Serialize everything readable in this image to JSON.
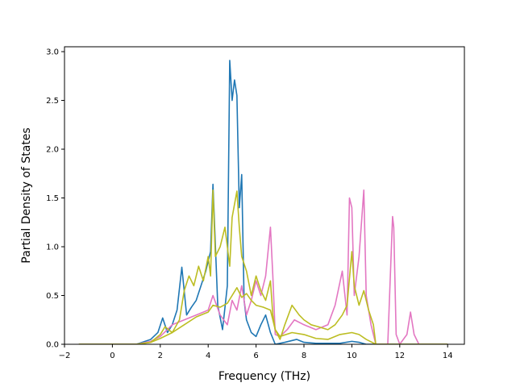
{
  "chart_data": {
    "type": "line",
    "title": "",
    "xlabel": "Frequency (THz)",
    "ylabel": "Partial Density of States",
    "xlim": [
      -2.0,
      14.7
    ],
    "ylim": [
      0.0,
      3.05
    ],
    "xticks": [
      -2,
      0,
      2,
      4,
      6,
      8,
      10,
      12,
      14
    ],
    "yticks": [
      0.0,
      0.5,
      1.0,
      1.5,
      2.0,
      2.5,
      3.0
    ],
    "ytick_labels": [
      "0.0",
      "0.5",
      "1.0",
      "1.5",
      "2.0",
      "2.5",
      "3.0"
    ],
    "grid": false,
    "legend": "none",
    "series": [
      {
        "color": "#1f77b4",
        "x": [
          -1.4,
          1.0,
          1.6,
          1.9,
          2.1,
          2.3,
          2.5,
          2.7,
          2.9,
          3.1,
          3.3,
          3.5,
          3.7,
          3.9,
          4.1,
          4.2,
          4.4,
          4.6,
          4.8,
          4.9,
          5.0,
          5.1,
          5.2,
          5.3,
          5.4,
          5.5,
          5.6,
          5.8,
          6.0,
          6.2,
          6.4,
          6.6,
          6.8,
          7.2,
          7.7,
          8.0,
          8.5,
          9.0,
          9.5,
          10.0,
          10.3,
          10.6,
          11.0,
          12.0,
          14.0
        ],
        "y": [
          0.0,
          0.0,
          0.05,
          0.12,
          0.27,
          0.12,
          0.2,
          0.35,
          0.79,
          0.3,
          0.38,
          0.45,
          0.6,
          0.75,
          0.95,
          1.64,
          0.4,
          0.15,
          0.6,
          2.91,
          2.5,
          2.71,
          2.55,
          1.4,
          1.74,
          0.45,
          0.25,
          0.12,
          0.08,
          0.2,
          0.3,
          0.12,
          0.0,
          0.02,
          0.05,
          0.02,
          0.01,
          0.01,
          0.01,
          0.03,
          0.02,
          0.0,
          0.0,
          0.0,
          0.0
        ]
      },
      {
        "color": "#e377c2",
        "x": [
          -1.4,
          1.0,
          1.6,
          2.0,
          2.5,
          3.0,
          3.5,
          4.0,
          4.2,
          4.5,
          4.8,
          5.0,
          5.2,
          5.4,
          5.6,
          5.8,
          6.0,
          6.2,
          6.4,
          6.6,
          6.7,
          6.8,
          7.0,
          7.3,
          7.6,
          8.0,
          8.5,
          9.0,
          9.3,
          9.6,
          9.8,
          9.9,
          10.0,
          10.1,
          10.3,
          10.5,
          10.6,
          10.8,
          11.0,
          11.5,
          11.7,
          11.75,
          11.85,
          12.0,
          12.3,
          12.45,
          12.6,
          12.8,
          14.0
        ],
        "y": [
          0.0,
          0.0,
          0.03,
          0.08,
          0.2,
          0.25,
          0.3,
          0.35,
          0.5,
          0.3,
          0.2,
          0.45,
          0.35,
          0.6,
          0.3,
          0.45,
          0.65,
          0.5,
          0.7,
          1.2,
          0.7,
          0.1,
          0.08,
          0.15,
          0.25,
          0.2,
          0.15,
          0.2,
          0.4,
          0.75,
          0.3,
          1.5,
          1.4,
          0.5,
          0.9,
          1.58,
          0.5,
          0.2,
          0.0,
          0.0,
          1.31,
          1.2,
          0.1,
          0.0,
          0.1,
          0.33,
          0.1,
          0.0,
          0.0
        ]
      },
      {
        "color": "#bcbd22",
        "x": [
          -1.4,
          1.0,
          1.6,
          2.0,
          2.2,
          2.5,
          2.8,
          3.0,
          3.2,
          3.4,
          3.6,
          3.8,
          4.0,
          4.1,
          4.2,
          4.3,
          4.5,
          4.7,
          4.9,
          5.0,
          5.2,
          5.3,
          5.4,
          5.6,
          5.8,
          6.0,
          6.2,
          6.4,
          6.6,
          6.7,
          6.8,
          7.0,
          7.2,
          7.5,
          7.8,
          8.0,
          8.3,
          8.6,
          9.0,
          9.3,
          9.6,
          9.8,
          10.0,
          10.1,
          10.3,
          10.5,
          10.7,
          10.9,
          11.0,
          14.0
        ],
        "y": [
          0.0,
          0.0,
          0.02,
          0.1,
          0.18,
          0.12,
          0.25,
          0.55,
          0.7,
          0.6,
          0.8,
          0.65,
          0.9,
          0.7,
          1.58,
          0.9,
          1.0,
          1.2,
          0.8,
          1.3,
          1.57,
          1.2,
          0.9,
          0.75,
          0.5,
          0.7,
          0.55,
          0.45,
          0.65,
          0.3,
          0.15,
          0.05,
          0.2,
          0.4,
          0.3,
          0.25,
          0.2,
          0.18,
          0.15,
          0.2,
          0.3,
          0.4,
          0.95,
          0.6,
          0.4,
          0.55,
          0.35,
          0.2,
          0.0,
          0.0
        ]
      },
      {
        "color": "#bcbd22",
        "x": [
          -1.4,
          1.0,
          1.6,
          2.0,
          2.5,
          3.0,
          3.5,
          4.0,
          4.2,
          4.5,
          4.8,
          5.0,
          5.2,
          5.4,
          5.6,
          5.8,
          6.0,
          6.3,
          6.6,
          6.8,
          7.0,
          7.5,
          8.0,
          8.5,
          9.0,
          9.5,
          10.0,
          10.3,
          10.6,
          11.0,
          14.0
        ],
        "y": [
          0.0,
          0.0,
          0.02,
          0.06,
          0.12,
          0.2,
          0.28,
          0.33,
          0.4,
          0.38,
          0.42,
          0.5,
          0.58,
          0.48,
          0.52,
          0.45,
          0.4,
          0.38,
          0.35,
          0.15,
          0.08,
          0.12,
          0.1,
          0.06,
          0.05,
          0.1,
          0.12,
          0.1,
          0.05,
          0.0,
          0.0
        ]
      }
    ]
  }
}
